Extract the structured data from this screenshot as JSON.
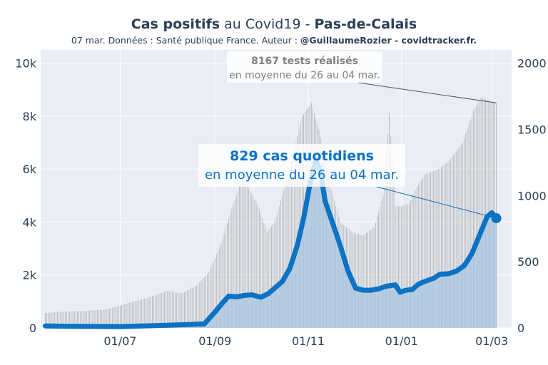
{
  "title": {
    "part1": "Cas positifs",
    "part2": " au Covid19 - ",
    "part3": "Pas-de-Calais"
  },
  "subtitle": {
    "part1": "07 mar. Données : Santé publique France. Auteur : ",
    "part2": "@GuillaumeRozier - covidtracker.fr."
  },
  "colors": {
    "cases": "#0b72c4",
    "cases_fill": "#a9c6e0",
    "tests": "#b8b8b8",
    "background": "#e8edf6",
    "grid": "#ffffff",
    "annotation_tests_text": "#7f7f7f"
  },
  "chart_data": {
    "type": "line",
    "x_ticks": [
      "01/07",
      "01/09",
      "01/11",
      "01/01",
      "01/03"
    ],
    "y_left": {
      "ticks": [
        "0",
        "2k",
        "4k",
        "6k",
        "8k",
        "10k"
      ],
      "range": [
        0,
        10500
      ]
    },
    "y_right": {
      "ticks": [
        "0",
        "500",
        "1000",
        "1500",
        "2000"
      ],
      "range": [
        0,
        2100
      ]
    },
    "grid": true,
    "series": [
      {
        "axis": "left",
        "style": "bars",
        "points": [
          [
            "2020-05-13",
            560
          ],
          [
            "2020-05-25",
            620
          ],
          [
            "2020-06-08",
            640
          ],
          [
            "2020-06-22",
            700
          ],
          [
            "2020-07-01",
            850
          ],
          [
            "2020-07-10",
            1000
          ],
          [
            "2020-07-20",
            1150
          ],
          [
            "2020-08-01",
            1400
          ],
          [
            "2020-08-10",
            1300
          ],
          [
            "2020-08-20",
            1600
          ],
          [
            "2020-08-28",
            2100
          ],
          [
            "2020-09-05",
            3200
          ],
          [
            "2020-09-12",
            4500
          ],
          [
            "2020-09-18",
            5500
          ],
          [
            "2020-09-22",
            5400
          ],
          [
            "2020-09-30",
            4500
          ],
          [
            "2020-10-05",
            3600
          ],
          [
            "2020-10-10",
            4000
          ],
          [
            "2020-10-15",
            5000
          ],
          [
            "2020-10-22",
            6500
          ],
          [
            "2020-10-28",
            8000
          ],
          [
            "2020-11-03",
            8500
          ],
          [
            "2020-11-08",
            7500
          ],
          [
            "2020-11-15",
            5400
          ],
          [
            "2020-11-22",
            4000
          ],
          [
            "2020-11-30",
            3600
          ],
          [
            "2020-12-07",
            3500
          ],
          [
            "2020-12-14",
            3800
          ],
          [
            "2020-12-20",
            5000
          ],
          [
            "2020-12-24",
            8100
          ],
          [
            "2020-12-28",
            4600
          ],
          [
            "2021-01-01",
            4600
          ],
          [
            "2021-01-06",
            4700
          ],
          [
            "2021-01-10",
            5200
          ],
          [
            "2021-01-16",
            5800
          ],
          [
            "2021-01-25",
            6000
          ],
          [
            "2021-02-01",
            6300
          ],
          [
            "2021-02-10",
            7000
          ],
          [
            "2021-02-17",
            8200
          ],
          [
            "2021-02-22",
            8700
          ],
          [
            "2021-03-04",
            8500
          ]
        ]
      },
      {
        "axis": "right",
        "style": "line-area",
        "points": [
          [
            "2020-05-13",
            15
          ],
          [
            "2020-06-01",
            12
          ],
          [
            "2020-07-01",
            10
          ],
          [
            "2020-08-01",
            20
          ],
          [
            "2020-08-25",
            30
          ],
          [
            "2020-09-01",
            120
          ],
          [
            "2020-09-06",
            190
          ],
          [
            "2020-09-10",
            240
          ],
          [
            "2020-09-15",
            235
          ],
          [
            "2020-09-20",
            245
          ],
          [
            "2020-09-25",
            250
          ],
          [
            "2020-10-01",
            232
          ],
          [
            "2020-10-06",
            260
          ],
          [
            "2020-10-10",
            300
          ],
          [
            "2020-10-15",
            350
          ],
          [
            "2020-10-20",
            450
          ],
          [
            "2020-10-25",
            630
          ],
          [
            "2020-10-29",
            830
          ],
          [
            "2020-11-02",
            1080
          ],
          [
            "2020-11-06",
            1270
          ],
          [
            "2020-11-09",
            1180
          ],
          [
            "2020-11-12",
            960
          ],
          [
            "2020-11-17",
            790
          ],
          [
            "2020-11-22",
            620
          ],
          [
            "2020-11-27",
            430
          ],
          [
            "2020-12-02",
            300
          ],
          [
            "2020-12-07",
            285
          ],
          [
            "2020-12-12",
            285
          ],
          [
            "2020-12-17",
            295
          ],
          [
            "2020-12-22",
            315
          ],
          [
            "2020-12-28",
            325
          ],
          [
            "2020-12-31",
            270
          ],
          [
            "2021-01-04",
            285
          ],
          [
            "2021-01-08",
            290
          ],
          [
            "2021-01-12",
            330
          ],
          [
            "2021-01-16",
            350
          ],
          [
            "2021-01-22",
            375
          ],
          [
            "2021-01-26",
            405
          ],
          [
            "2021-02-01",
            410
          ],
          [
            "2021-02-06",
            430
          ],
          [
            "2021-02-11",
            470
          ],
          [
            "2021-02-16",
            560
          ],
          [
            "2021-02-21",
            700
          ],
          [
            "2021-02-26",
            840
          ],
          [
            "2021-03-01",
            870
          ],
          [
            "2021-03-04",
            829
          ]
        ]
      }
    ],
    "annotations": [
      {
        "value": "8167",
        "label": "8167 tests réalisés",
        "sub": "en moyenne du 26 au 04 mar."
      },
      {
        "value": "829",
        "label": "829 cas quotidiens",
        "sub": "en moyenne du 26 au 04 mar."
      }
    ]
  }
}
